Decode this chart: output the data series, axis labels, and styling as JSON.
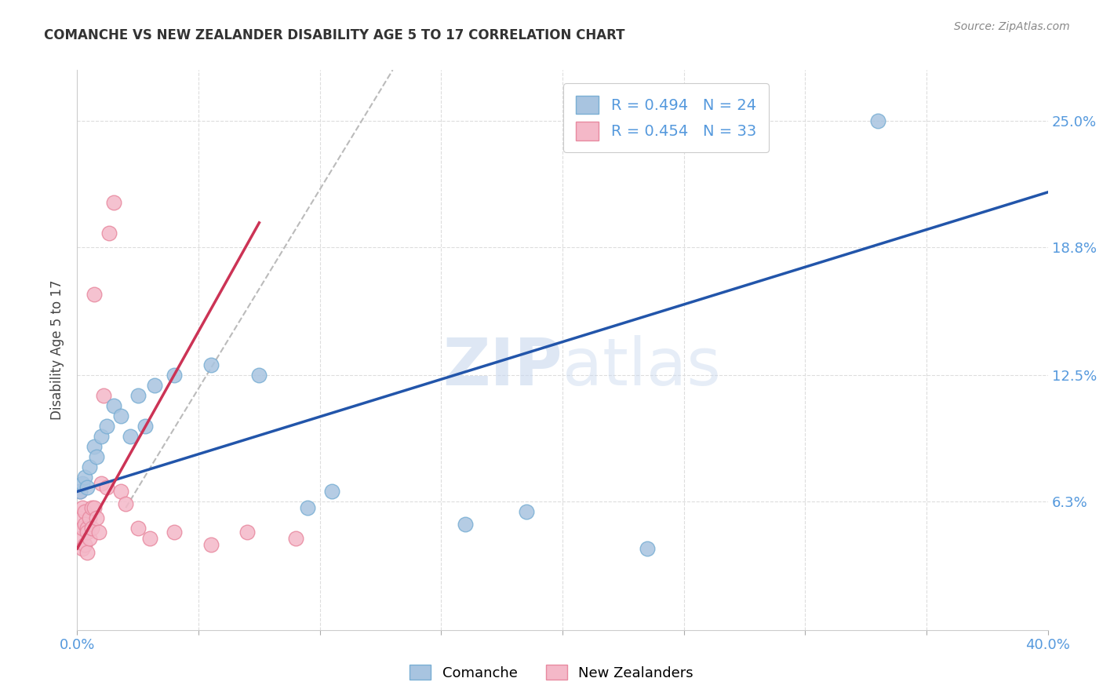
{
  "title": "COMANCHE VS NEW ZEALANDER DISABILITY AGE 5 TO 17 CORRELATION CHART",
  "source": "Source: ZipAtlas.com",
  "ylabel": "Disability Age 5 to 17",
  "xlim": [
    0.0,
    0.4
  ],
  "ylim": [
    0.0,
    0.275
  ],
  "ytick_positions": [
    0.0,
    0.063,
    0.125,
    0.188,
    0.25
  ],
  "ytick_labels": [
    "",
    "6.3%",
    "12.5%",
    "18.8%",
    "25.0%"
  ],
  "grid_color": "#dddddd",
  "background_color": "#ffffff",
  "comanche_color": "#a8c4e0",
  "comanche_edge": "#7aafd4",
  "nz_color": "#f4b8c8",
  "nz_edge": "#e88aa0",
  "trend_blue": "#2255aa",
  "trend_pink": "#cc3355",
  "watermark": "ZIPatlas",
  "comanche_x": [
    0.001,
    0.002,
    0.003,
    0.004,
    0.005,
    0.007,
    0.008,
    0.01,
    0.012,
    0.015,
    0.018,
    0.022,
    0.025,
    0.028,
    0.032,
    0.04,
    0.055,
    0.075,
    0.095,
    0.105,
    0.16,
    0.185,
    0.235,
    0.33
  ],
  "comanche_y": [
    0.068,
    0.072,
    0.075,
    0.07,
    0.08,
    0.09,
    0.085,
    0.095,
    0.1,
    0.11,
    0.105,
    0.095,
    0.115,
    0.1,
    0.12,
    0.125,
    0.13,
    0.125,
    0.06,
    0.068,
    0.052,
    0.058,
    0.04,
    0.25
  ],
  "nz_x": [
    0.001,
    0.001,
    0.001,
    0.002,
    0.002,
    0.002,
    0.003,
    0.003,
    0.003,
    0.004,
    0.004,
    0.004,
    0.005,
    0.005,
    0.006,
    0.006,
    0.007,
    0.007,
    0.008,
    0.009,
    0.01,
    0.011,
    0.012,
    0.013,
    0.015,
    0.018,
    0.02,
    0.025,
    0.03,
    0.04,
    0.055,
    0.07,
    0.09
  ],
  "nz_y": [
    0.068,
    0.055,
    0.045,
    0.06,
    0.05,
    0.04,
    0.058,
    0.052,
    0.042,
    0.05,
    0.048,
    0.038,
    0.055,
    0.045,
    0.06,
    0.05,
    0.165,
    0.06,
    0.055,
    0.048,
    0.072,
    0.115,
    0.07,
    0.195,
    0.21,
    0.068,
    0.062,
    0.05,
    0.045,
    0.048,
    0.042,
    0.048,
    0.045
  ],
  "blue_trend_x": [
    0.0,
    0.4
  ],
  "blue_trend_y_start": 0.068,
  "blue_trend_y_end": 0.215,
  "pink_trend_x": [
    0.0,
    0.075
  ],
  "pink_trend_y_start": 0.04,
  "pink_trend_y_end": 0.2,
  "gray_line_x": [
    0.02,
    0.13
  ],
  "gray_line_y": [
    0.06,
    0.275
  ]
}
